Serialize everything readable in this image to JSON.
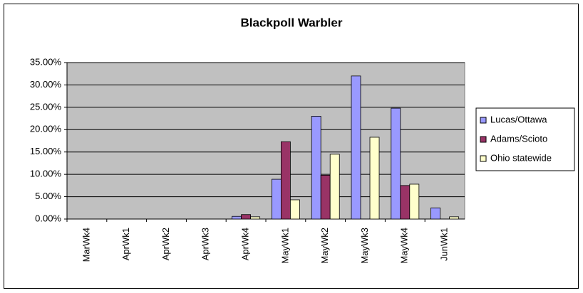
{
  "chart_data": {
    "type": "bar",
    "title": "Blackpoll Warbler",
    "categories": [
      "MarWk4",
      "AprWk1",
      "AprWk2",
      "AprWk3",
      "AprWk4",
      "MayWk1",
      "MayWk2",
      "MayWk3",
      "MayWk4",
      "JunWk1"
    ],
    "series": [
      {
        "name": "Lucas/Ottawa",
        "color": "#9999ff",
        "values": [
          0,
          0,
          0,
          0,
          0.6,
          8.9,
          23,
          32,
          24.8,
          2.5
        ]
      },
      {
        "name": "Adams/Scioto",
        "color": "#993366",
        "values": [
          0,
          0,
          0,
          0,
          1.0,
          17.3,
          9.8,
          0,
          7.5,
          0
        ]
      },
      {
        "name": "Ohio statewide",
        "color": "#ffffcc",
        "values": [
          0,
          0,
          0,
          0,
          0.5,
          4.3,
          14.5,
          18.3,
          7.8,
          0.5
        ]
      }
    ],
    "ylim": [
      0,
      35
    ],
    "yticks": [
      {
        "value": 0,
        "label": "0.00%"
      },
      {
        "value": 5,
        "label": "5.00%"
      },
      {
        "value": 10,
        "label": "10.00%"
      },
      {
        "value": 15,
        "label": "15.00%"
      },
      {
        "value": 20,
        "label": "20.00%"
      },
      {
        "value": 25,
        "label": "25.00%"
      },
      {
        "value": 30,
        "label": "30.00%"
      },
      {
        "value": 35,
        "label": "35.00%"
      }
    ],
    "grid": true,
    "legend": "right",
    "plot_background": "#c0c0c0"
  }
}
